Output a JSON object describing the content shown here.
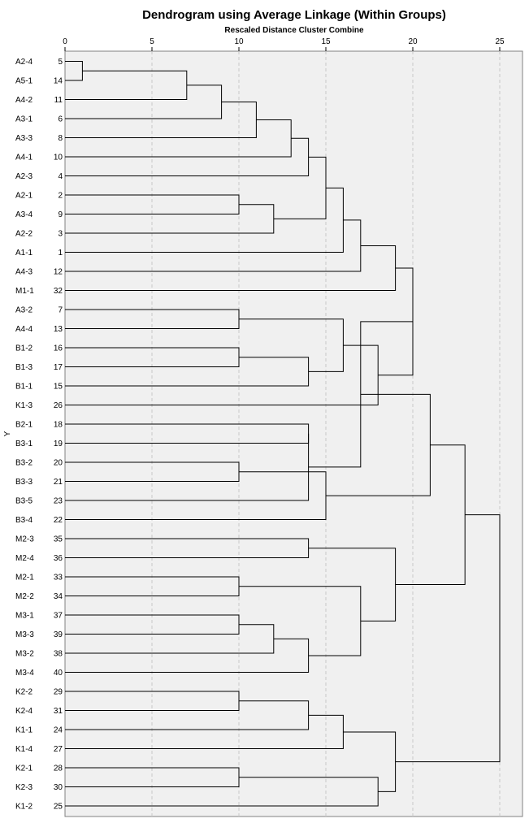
{
  "chart_data": {
    "type": "dendrogram",
    "title": "Dendrogram using Average Linkage (Within Groups)",
    "xlabel": "Rescaled Distance Cluster Combine",
    "ylabel": "Y",
    "xlim": [
      0,
      25
    ],
    "xticks": [
      "0",
      "5",
      "10",
      "15",
      "20",
      "25"
    ],
    "grid": true,
    "leaves": [
      {
        "label": "A2-4",
        "case": "5"
      },
      {
        "label": "A5-1",
        "case": "14"
      },
      {
        "label": "A4-2",
        "case": "11"
      },
      {
        "label": "A3-1",
        "case": "6"
      },
      {
        "label": "A3-3",
        "case": "8"
      },
      {
        "label": "A4-1",
        "case": "10"
      },
      {
        "label": "A2-3",
        "case": "4"
      },
      {
        "label": "A2-1",
        "case": "2"
      },
      {
        "label": "A3-4",
        "case": "9"
      },
      {
        "label": "A2-2",
        "case": "3"
      },
      {
        "label": "A1-1",
        "case": "1"
      },
      {
        "label": "A4-3",
        "case": "12"
      },
      {
        "label": "M1-1",
        "case": "32"
      },
      {
        "label": "A3-2",
        "case": "7"
      },
      {
        "label": "A4-4",
        "case": "13"
      },
      {
        "label": "B1-2",
        "case": "16"
      },
      {
        "label": "B1-3",
        "case": "17"
      },
      {
        "label": "B1-1",
        "case": "15"
      },
      {
        "label": "K1-3",
        "case": "26"
      },
      {
        "label": "B2-1",
        "case": "18"
      },
      {
        "label": "B3-1",
        "case": "19"
      },
      {
        "label": "B3-2",
        "case": "20"
      },
      {
        "label": "B3-3",
        "case": "21"
      },
      {
        "label": "B3-5",
        "case": "23"
      },
      {
        "label": "B3-4",
        "case": "22"
      },
      {
        "label": "M2-3",
        "case": "35"
      },
      {
        "label": "M2-4",
        "case": "36"
      },
      {
        "label": "M2-1",
        "case": "33"
      },
      {
        "label": "M2-2",
        "case": "34"
      },
      {
        "label": "M3-1",
        "case": "37"
      },
      {
        "label": "M3-3",
        "case": "39"
      },
      {
        "label": "M3-2",
        "case": "38"
      },
      {
        "label": "M3-4",
        "case": "40"
      },
      {
        "label": "K2-2",
        "case": "29"
      },
      {
        "label": "K2-4",
        "case": "31"
      },
      {
        "label": "K1-1",
        "case": "24"
      },
      {
        "label": "K1-4",
        "case": "27"
      },
      {
        "label": "K2-1",
        "case": "28"
      },
      {
        "label": "K2-3",
        "case": "30"
      },
      {
        "label": "K1-2",
        "case": "25"
      }
    ],
    "merges": [
      {
        "a": "L0",
        "b": "L1",
        "height": 1
      },
      {
        "a": "M1",
        "b": "L2",
        "height": 7
      },
      {
        "a": "M2",
        "b": "L3",
        "height": 9
      },
      {
        "a": "M3",
        "b": "L4",
        "height": 11
      },
      {
        "a": "M4",
        "b": "L5",
        "height": 13
      },
      {
        "a": "M5",
        "b": "L6",
        "height": 14
      },
      {
        "a": "L7",
        "b": "L8",
        "height": 10
      },
      {
        "a": "M7",
        "b": "L9",
        "height": 12
      },
      {
        "a": "M6",
        "b": "M8",
        "height": 15
      },
      {
        "a": "M9",
        "b": "L10",
        "height": 16
      },
      {
        "a": "M10",
        "b": "L11",
        "height": 17
      },
      {
        "a": "M11",
        "b": "L12",
        "height": 19
      },
      {
        "a": "L13",
        "b": "L14",
        "height": 10
      },
      {
        "a": "L15",
        "b": "L16",
        "height": 10
      },
      {
        "a": "M14",
        "b": "L17",
        "height": 14
      },
      {
        "a": "M13",
        "b": "M15",
        "height": 16
      },
      {
        "a": "M16",
        "b": "L18",
        "height": 18
      },
      {
        "a": "M12",
        "b": "M17",
        "height": 20
      },
      {
        "a": "L19",
        "b": "L20",
        "height": 14
      },
      {
        "a": "L21",
        "b": "L22",
        "height": 10
      },
      {
        "a": "M19",
        "b": "L23",
        "height": 14
      },
      {
        "a": "M20",
        "b": "L24",
        "height": 15
      },
      {
        "a": "M18",
        "b": "M21",
        "height": 17
      },
      {
        "a": "M22",
        "b": "M23",
        "height": 21
      },
      {
        "a": "L25",
        "b": "L26",
        "height": 14
      },
      {
        "a": "L27",
        "b": "L28",
        "height": 10
      },
      {
        "a": "L29",
        "b": "L30",
        "height": 10
      },
      {
        "a": "M27",
        "b": "L31",
        "height": 12
      },
      {
        "a": "M28",
        "b": "L32",
        "height": 14
      },
      {
        "a": "M26",
        "b": "M29",
        "height": 17
      },
      {
        "a": "M25",
        "b": "M30",
        "height": 19
      },
      {
        "a": "L33",
        "b": "L34",
        "height": 10
      },
      {
        "a": "M32",
        "b": "L35",
        "height": 14
      },
      {
        "a": "M33",
        "b": "L36",
        "height": 16
      },
      {
        "a": "L37",
        "b": "L38",
        "height": 10
      },
      {
        "a": "M35",
        "b": "L39",
        "height": 18
      },
      {
        "a": "M34",
        "b": "M36",
        "height": 19
      },
      {
        "a": "M24",
        "b": "M31",
        "height": 23
      },
      {
        "a": "M38",
        "b": "M37",
        "height": 25
      }
    ]
  }
}
